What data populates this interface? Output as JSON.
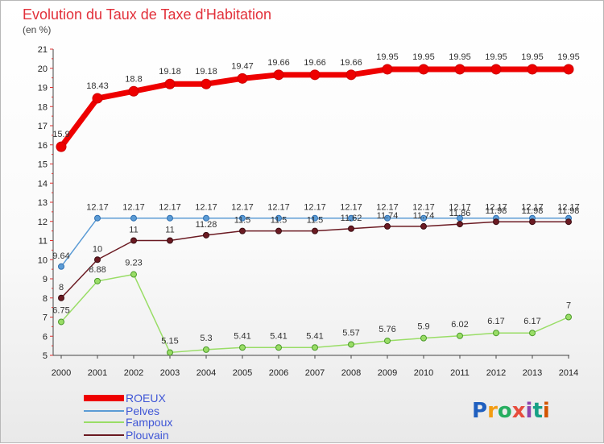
{
  "chart_data": {
    "type": "line",
    "title": "Evolution du Taux de Taxe d'Habitation",
    "subtitle": "(en %)",
    "x": [
      "2000",
      "2001",
      "2002",
      "2003",
      "2004",
      "2005",
      "2006",
      "2007",
      "2008",
      "2009",
      "2010",
      "2011",
      "2012",
      "2013",
      "2014"
    ],
    "ylim": [
      5,
      21
    ],
    "yticks": [
      5,
      6,
      7,
      8,
      9,
      10,
      11,
      12,
      13,
      14,
      15,
      16,
      17,
      18,
      19,
      20,
      21
    ],
    "grid": false,
    "legend_position": "bottom-left",
    "series": [
      {
        "name": "ROEUX",
        "color": "#ee0000",
        "values": [
          15.9,
          18.43,
          18.8,
          19.18,
          19.18,
          19.47,
          19.66,
          19.66,
          19.66,
          19.95,
          19.95,
          19.95,
          19.95,
          19.95,
          19.95
        ],
        "labels": [
          "15.9",
          "18.43",
          "18.8",
          "19.18",
          "19.18",
          "19.47",
          "19.66",
          "19.66",
          "19.66",
          "19.95",
          "19.95",
          "19.95",
          "19.95",
          "19.95",
          "19.95"
        ]
      },
      {
        "name": "Pelves",
        "color": "#5b9bd5",
        "values": [
          9.64,
          12.17,
          12.17,
          12.17,
          12.17,
          12.17,
          12.17,
          12.17,
          12.17,
          12.17,
          12.17,
          12.17,
          12.17,
          12.17,
          12.17
        ],
        "labels": [
          "9.64",
          "12.17",
          "12.17",
          "12.17",
          "12.17",
          "12.17",
          "12.17",
          "12.17",
          "12.17",
          "12.17",
          "12.17",
          "12.17",
          "12.17",
          "12.17",
          "12.17"
        ]
      },
      {
        "name": "Fampoux",
        "color": "#99dd66",
        "values": [
          6.75,
          8.88,
          9.23,
          5.15,
          5.3,
          5.41,
          5.41,
          5.41,
          5.57,
          5.76,
          5.9,
          6.02,
          6.17,
          6.17,
          7
        ],
        "labels": [
          "6.75",
          "8.88",
          "9.23",
          "5.15",
          "5.3",
          "5.41",
          "5.41",
          "5.41",
          "5.57",
          "5.76",
          "5.9",
          "6.02",
          "6.17",
          "6.17",
          "7"
        ]
      },
      {
        "name": "Plouvain",
        "color": "#6b1a22",
        "values": [
          8,
          10,
          11,
          11,
          11.28,
          11.5,
          11.5,
          11.5,
          11.62,
          11.74,
          11.74,
          11.86,
          11.98,
          11.98,
          11.98
        ],
        "labels": [
          "8",
          "10",
          "11",
          "11",
          "11.28",
          "11.5",
          "11.5",
          "11.5",
          "11.62",
          "11.74",
          "11.74",
          "11.86",
          "11.98",
          "11.98",
          "11.98"
        ]
      }
    ]
  },
  "logo": {
    "text": "Proxiti",
    "colors": [
      "#1f5fbf",
      "#f39c12",
      "#27ae60",
      "#e74c3c",
      "#8e44ad",
      "#16a085",
      "#d35400"
    ]
  }
}
